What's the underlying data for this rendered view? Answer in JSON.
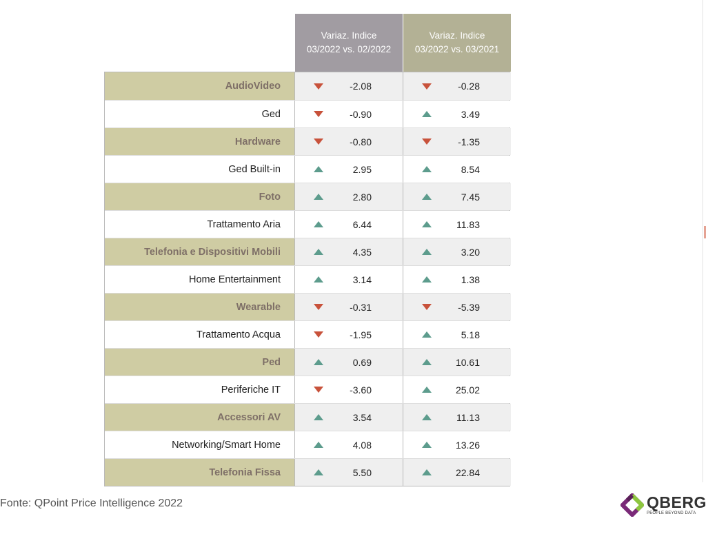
{
  "headers": {
    "col1_line1": "Variaz. Indice",
    "col1_line2": "03/2022 vs. 02/2022",
    "col2_line1": "Variaz. Indice",
    "col2_line2": "03/2022 vs. 03/2021"
  },
  "colors": {
    "header1_bg": "#a19ca2",
    "header2_bg": "#b3b195",
    "band_bg": "#cfcca3",
    "up_arrow": "#5d9c8d",
    "down_arrow": "#c8523b"
  },
  "rows": [
    {
      "category": "AudioVideo",
      "v1": "-2.08",
      "d1": "down",
      "v2": "-0.28",
      "d2": "down"
    },
    {
      "category": "Ged",
      "v1": "-0.90",
      "d1": "down",
      "v2": "3.49",
      "d2": "up"
    },
    {
      "category": "Hardware",
      "v1": "-0.80",
      "d1": "down",
      "v2": "-1.35",
      "d2": "down"
    },
    {
      "category": "Ged Built-in",
      "v1": "2.95",
      "d1": "up",
      "v2": "8.54",
      "d2": "up"
    },
    {
      "category": "Foto",
      "v1": "2.80",
      "d1": "up",
      "v2": "7.45",
      "d2": "up"
    },
    {
      "category": "Trattamento Aria",
      "v1": "6.44",
      "d1": "up",
      "v2": "11.83",
      "d2": "up"
    },
    {
      "category": "Telefonia e Dispositivi Mobili",
      "v1": "4.35",
      "d1": "up",
      "v2": "3.20",
      "d2": "up"
    },
    {
      "category": "Home Entertainment",
      "v1": "3.14",
      "d1": "up",
      "v2": "1.38",
      "d2": "up"
    },
    {
      "category": "Wearable",
      "v1": "-0.31",
      "d1": "down",
      "v2": "-5.39",
      "d2": "down"
    },
    {
      "category": "Trattamento Acqua",
      "v1": "-1.95",
      "d1": "down",
      "v2": "5.18",
      "d2": "up"
    },
    {
      "category": "Ped",
      "v1": "0.69",
      "d1": "up",
      "v2": "10.61",
      "d2": "up"
    },
    {
      "category": "Periferiche IT",
      "v1": "-3.60",
      "d1": "down",
      "v2": "25.02",
      "d2": "up"
    },
    {
      "category": "Accessori AV",
      "v1": "3.54",
      "d1": "up",
      "v2": "11.13",
      "d2": "up"
    },
    {
      "category": "Networking/Smart Home",
      "v1": "4.08",
      "d1": "up",
      "v2": "13.26",
      "d2": "up"
    },
    {
      "category": "Telefonia Fissa",
      "v1": "5.50",
      "d1": "up",
      "v2": "22.84",
      "d2": "up"
    }
  ],
  "footer": {
    "source": "Fonte: QPoint Price Intelligence 2022"
  },
  "logo": {
    "name": "QBERG",
    "tagline": "PEOPLE BEYOND DATA",
    "icon": "qberg-logo-icon"
  }
}
